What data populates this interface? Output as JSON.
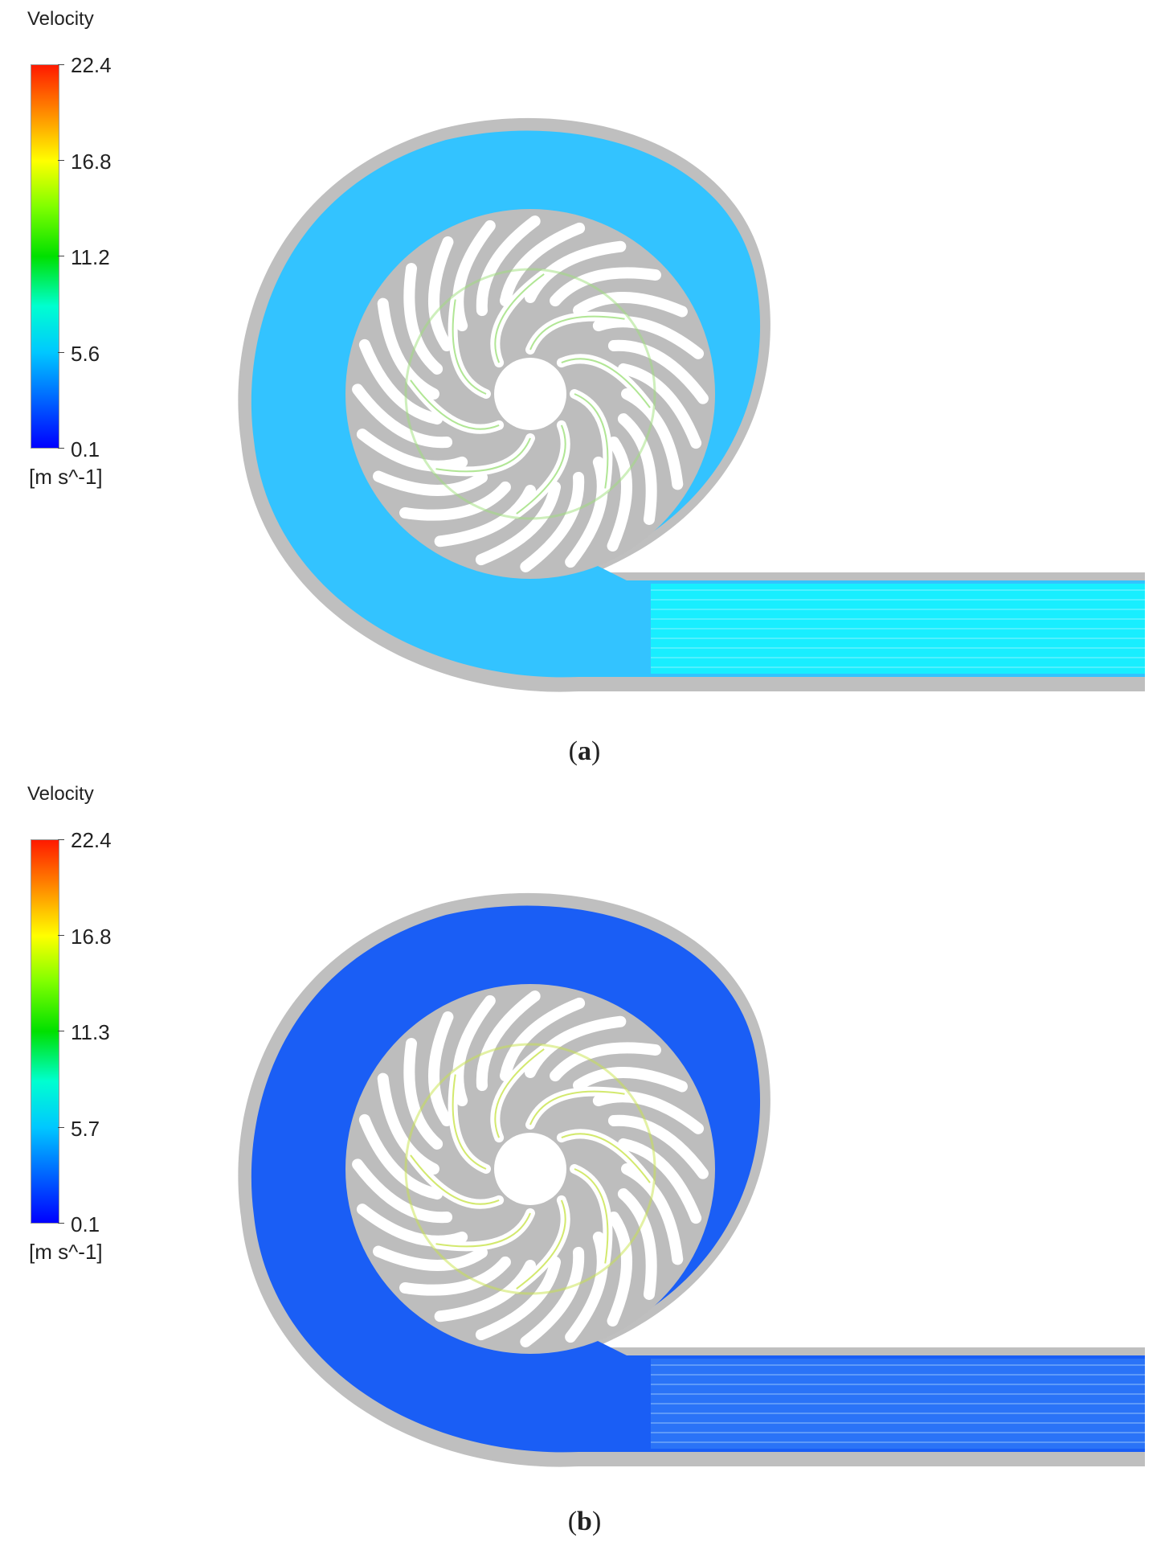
{
  "panels": [
    {
      "id": "a",
      "legend_title": "Velocity",
      "ticks": [
        "22.4",
        "16.8",
        "11.2",
        "5.6",
        "0.1"
      ],
      "units": "[m s^-1]",
      "caption_open": "(",
      "caption_letter": "a",
      "caption_close": ")",
      "volute_color": "#33c3ff",
      "outlet_color": "#18eeff",
      "impeller_color": "#9ee07a"
    },
    {
      "id": "b",
      "legend_title": "Velocity",
      "ticks": [
        "22.4",
        "16.8",
        "11.3",
        "5.7",
        "0.1"
      ],
      "units": "[m s^-1]",
      "caption_open": "(",
      "caption_letter": "b",
      "caption_close": ")",
      "volute_color": "#1a5ef5",
      "outlet_color": "#2a73f7",
      "impeller_color": "#c8e44a"
    }
  ]
}
